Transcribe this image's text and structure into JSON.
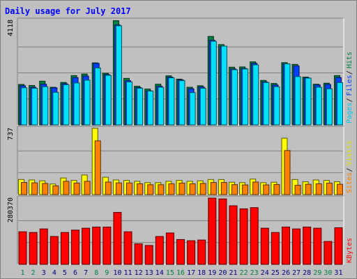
{
  "chart_data": {
    "type": "bar",
    "title": "Daily usage for July 2017",
    "categories": [
      "1",
      "2",
      "3",
      "4",
      "5",
      "6",
      "7",
      "8",
      "9",
      "10",
      "11",
      "12",
      "13",
      "14",
      "15",
      "16",
      "17",
      "18",
      "19",
      "20",
      "21",
      "22",
      "23",
      "24",
      "25",
      "26",
      "27",
      "28",
      "29",
      "30",
      "31"
    ],
    "weekend_days": [
      "1",
      "2",
      "8",
      "9",
      "15",
      "16",
      "22",
      "23",
      "29",
      "30"
    ],
    "panels": [
      {
        "name": "hits-files-pages",
        "max_label": "4118",
        "ymax": 4118,
        "ylim": [
          0,
          4118
        ],
        "side_labels": [
          "Pages",
          "Files",
          "Hits"
        ],
        "series": [
          {
            "name": "Hits",
            "color": "#008040",
            "values": [
              1590,
              1550,
              1720,
              1480,
              1670,
              1940,
              2000,
              2440,
              2030,
              4100,
              1830,
              1520,
              1410,
              1600,
              1930,
              1800,
              1480,
              1540,
              3480,
              3160,
              2270,
              2280,
              2480,
              1750,
              1630,
              2450,
              2380,
              1880,
              1600,
              1640,
              1940
            ]
          },
          {
            "name": "Files",
            "color": "#0040ff",
            "values": [
              1540,
              1480,
              1600,
              1460,
              1620,
              1860,
              1920,
              2420,
              1980,
              3930,
              1740,
              1470,
              1340,
              1520,
              1880,
              1770,
              1420,
              1490,
              3330,
              3090,
              2200,
              2220,
              2420,
              1690,
              1570,
              2400,
              2320,
              1850,
              1570,
              1590,
              1860
            ]
          },
          {
            "name": "Pages",
            "color": "#00e0ff",
            "values": [
              1460,
              1440,
              1500,
              1280,
              1580,
              1650,
              1760,
              2240,
              1950,
              3900,
              1690,
              1440,
              1330,
              1480,
              1850,
              1740,
              1270,
              1440,
              3290,
              3100,
              2170,
              2200,
              2360,
              1670,
              1500,
              2400,
              1900,
              1840,
              1480,
              1420,
              1660
            ]
          }
        ]
      },
      {
        "name": "sites-visits",
        "max_label": "737",
        "ymax": 737,
        "ylim": [
          0,
          737
        ],
        "side_labels": [
          "Sites",
          "Visits"
        ],
        "series": [
          {
            "name": "Visits",
            "color": "#ffff00",
            "values": [
              168,
              163,
              153,
              118,
              185,
              158,
              218,
              737,
              193,
              163,
              158,
              148,
              133,
              133,
              148,
              158,
              148,
              153,
              168,
              168,
              138,
              133,
              173,
              133,
              138,
              628,
              168,
              143,
              163,
              158,
              143
            ]
          },
          {
            "name": "Sites",
            "color": "#ff8000",
            "values": [
              135,
              131,
              124,
              98,
              148,
              128,
              148,
              598,
              140,
              130,
              130,
              120,
              110,
              110,
              120,
              128,
              120,
              124,
              135,
              135,
              111,
              108,
              140,
              108,
              112,
              490,
              104,
              115,
              120,
              128,
              115
            ]
          }
        ]
      },
      {
        "name": "kbytes",
        "max_label": "280370",
        "ymax": 280370,
        "ylim": [
          0,
          280370
        ],
        "side_labels": [
          "KBytes"
        ],
        "series": [
          {
            "name": "KBytes",
            "color": "#ff0000",
            "values": [
              138000,
              135000,
              150000,
              118000,
              135000,
              145000,
              153000,
              158000,
              158000,
              220000,
              138000,
              87000,
              80000,
              118000,
              133000,
              105000,
              100000,
              103000,
              280370,
              277000,
              248000,
              235000,
              240000,
              153000,
              135000,
              158000,
              150000,
              158000,
              153000,
              97000,
              155000
            ]
          }
        ]
      }
    ],
    "grid": true
  },
  "colors": {
    "plot_background": "#c0c0c0",
    "title": "#0000ff",
    "axis_label": "#000000",
    "weekday_label": "#000080",
    "weekend_label": "#008040"
  }
}
